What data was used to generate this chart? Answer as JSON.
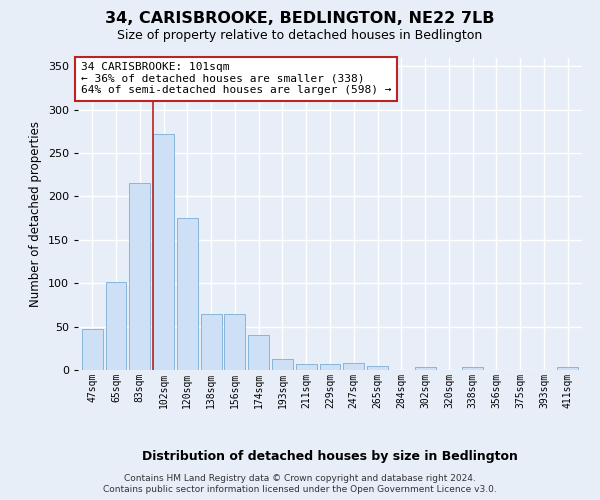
{
  "title": "34, CARISBROOKE, BEDLINGTON, NE22 7LB",
  "subtitle": "Size of property relative to detached houses in Bedlington",
  "xlabel": "Distribution of detached houses by size in Bedlington",
  "ylabel": "Number of detached properties",
  "categories": [
    "47sqm",
    "65sqm",
    "83sqm",
    "102sqm",
    "120sqm",
    "138sqm",
    "156sqm",
    "174sqm",
    "193sqm",
    "211sqm",
    "229sqm",
    "247sqm",
    "265sqm",
    "284sqm",
    "302sqm",
    "320sqm",
    "338sqm",
    "356sqm",
    "375sqm",
    "393sqm",
    "411sqm"
  ],
  "values": [
    47,
    101,
    215,
    272,
    175,
    65,
    65,
    40,
    13,
    7,
    7,
    8,
    5,
    0,
    3,
    0,
    3,
    0,
    0,
    0,
    3
  ],
  "bar_color": "#cde0f5",
  "bar_edge_color": "#7aadd4",
  "marker_line_index": 3,
  "marker_line_color": "#bb2222",
  "annotation_line1": "34 CARISBROOKE: 101sqm",
  "annotation_line2": "← 36% of detached houses are smaller (338)",
  "annotation_line3": "64% of semi-detached houses are larger (598) →",
  "annotation_box_facecolor": "#ffffff",
  "annotation_box_edgecolor": "#bb2222",
  "background_color": "#e8eef8",
  "plot_bg_color": "#e8eef8",
  "grid_color": "#ffffff",
  "footer_text": "Contains HM Land Registry data © Crown copyright and database right 2024.\nContains public sector information licensed under the Open Government Licence v3.0.",
  "ylim_max": 360,
  "yticks": [
    0,
    50,
    100,
    150,
    200,
    250,
    300,
    350
  ]
}
